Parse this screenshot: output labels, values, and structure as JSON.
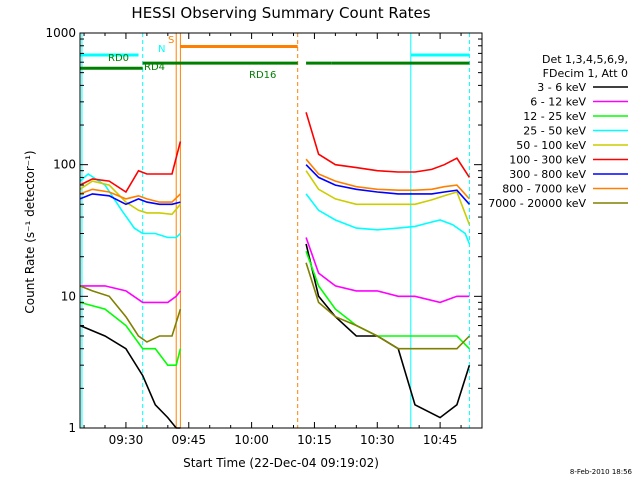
{
  "chart_data": {
    "type": "line",
    "title": "HESSI Observing Summary Count Rates",
    "xlabel": "Start Time (22-Dec-04 09:19:02)",
    "ylabel": "Count Rate (s⁻¹ detector⁻¹)",
    "y_scale": "log",
    "ylim": [
      1,
      1000
    ],
    "xlim": [
      "09:19:02",
      "10:55:00"
    ],
    "x_ticks": [
      "09:30",
      "09:45",
      "10:00",
      "10:15",
      "10:30",
      "10:45"
    ],
    "y_ticks": [
      "1",
      "10",
      "100",
      "1000"
    ],
    "footer": "8-Feb-2010 18:56",
    "legend": {
      "header": [
        "Det 1,3,4,5,6,9,",
        "FDecim 1, Att 0"
      ],
      "position": "right"
    },
    "series": [
      {
        "name": "3 - 6 keV",
        "color": "#000000",
        "x": [
          "09:19",
          "09:25",
          "09:30",
          "09:34",
          "09:37",
          "09:40",
          "09:42",
          "09:43",
          "10:11",
          "10:13",
          "10:16",
          "10:20",
          "10:25",
          "10:30",
          "10:35",
          "10:39",
          "10:45",
          "10:49",
          "10:52"
        ],
        "values": [
          6,
          5,
          4,
          2.5,
          1.5,
          1.2,
          1,
          1,
          null,
          25,
          10,
          7,
          5,
          5,
          4,
          1.5,
          1.2,
          1.5,
          3
        ]
      },
      {
        "name": "6 - 12 keV",
        "color": "#ff00ff",
        "x": [
          "09:19",
          "09:25",
          "09:30",
          "09:34",
          "09:37",
          "09:40",
          "09:42",
          "09:43",
          "10:11",
          "10:13",
          "10:16",
          "10:20",
          "10:25",
          "10:30",
          "10:35",
          "10:39",
          "10:45",
          "10:49",
          "10:52"
        ],
        "values": [
          12,
          12,
          11,
          9,
          9,
          9,
          10,
          11,
          null,
          28,
          15,
          12,
          11,
          11,
          10,
          10,
          9,
          10,
          10
        ]
      },
      {
        "name": "12 - 25 keV",
        "color": "#00ff00",
        "x": [
          "09:19",
          "09:25",
          "09:30",
          "09:34",
          "09:37",
          "09:40",
          "09:42",
          "09:43",
          "10:11",
          "10:13",
          "10:16",
          "10:20",
          "10:25",
          "10:30",
          "10:35",
          "10:39",
          "10:45",
          "10:49",
          "10:52"
        ],
        "values": [
          9,
          8,
          6,
          4,
          4,
          3,
          3,
          4,
          null,
          22,
          12,
          8,
          6,
          5,
          5,
          5,
          5,
          5,
          4
        ]
      },
      {
        "name": "25 - 50 keV",
        "color": "#00ffff",
        "x": [
          "09:19",
          "09:21",
          "09:25",
          "09:29",
          "09:32",
          "09:34",
          "09:37",
          "09:40",
          "09:42",
          "09:43",
          "10:11",
          "10:13",
          "10:16",
          "10:20",
          "10:25",
          "10:30",
          "10:35",
          "10:39",
          "10:42",
          "10:45",
          "10:48",
          "10:51",
          "10:52"
        ],
        "values": [
          75,
          85,
          70,
          45,
          33,
          30,
          30,
          28,
          28,
          30,
          null,
          60,
          45,
          38,
          33,
          32,
          33,
          34,
          36,
          38,
          35,
          30,
          25
        ]
      },
      {
        "name": "50 - 100 keV",
        "color": "#cccc00",
        "x": [
          "09:19",
          "09:22",
          "09:26",
          "09:30",
          "09:33",
          "09:35",
          "09:38",
          "09:41",
          "09:43",
          "10:11",
          "10:13",
          "10:16",
          "10:20",
          "10:25",
          "10:30",
          "10:35",
          "10:39",
          "10:43",
          "10:46",
          "10:49",
          "10:52"
        ],
        "values": [
          65,
          75,
          70,
          52,
          45,
          43,
          43,
          42,
          50,
          null,
          90,
          65,
          55,
          50,
          50,
          50,
          50,
          54,
          58,
          62,
          35
        ]
      },
      {
        "name": "100 - 300 keV",
        "color": "#ff0000",
        "x": [
          "09:19",
          "09:22",
          "09:26",
          "09:30",
          "09:33",
          "09:35",
          "09:38",
          "09:41",
          "09:43",
          "10:11",
          "10:13",
          "10:16",
          "10:20",
          "10:25",
          "10:30",
          "10:35",
          "10:39",
          "10:43",
          "10:46",
          "10:49",
          "10:52"
        ],
        "values": [
          70,
          78,
          75,
          62,
          90,
          85,
          85,
          85,
          150,
          null,
          250,
          120,
          100,
          95,
          90,
          88,
          88,
          92,
          100,
          112,
          80
        ]
      },
      {
        "name": "300 - 800 keV",
        "color": "#0000ff",
        "x": [
          "09:19",
          "09:22",
          "09:26",
          "09:30",
          "09:33",
          "09:35",
          "09:38",
          "09:41",
          "09:43",
          "10:11",
          "10:13",
          "10:16",
          "10:20",
          "10:25",
          "10:30",
          "10:35",
          "10:39",
          "10:43",
          "10:46",
          "10:49",
          "10:52"
        ],
        "values": [
          55,
          60,
          58,
          50,
          55,
          52,
          50,
          50,
          52,
          null,
          100,
          80,
          70,
          65,
          62,
          60,
          60,
          60,
          62,
          64,
          50
        ]
      },
      {
        "name": "800 - 7000 keV",
        "color": "#ff8000",
        "x": [
          "09:19",
          "09:22",
          "09:26",
          "09:30",
          "09:33",
          "09:35",
          "09:38",
          "09:41",
          "09:43",
          "10:11",
          "10:13",
          "10:16",
          "10:20",
          "10:25",
          "10:30",
          "10:35",
          "10:39",
          "10:43",
          "10:46",
          "10:49",
          "10:52"
        ],
        "values": [
          60,
          65,
          62,
          55,
          58,
          55,
          52,
          52,
          60,
          null,
          110,
          85,
          75,
          68,
          65,
          64,
          64,
          65,
          68,
          70,
          55
        ]
      },
      {
        "name": "7000 - 20000 keV",
        "color": "#808000",
        "x": [
          "09:19",
          "09:22",
          "09:26",
          "09:30",
          "09:33",
          "09:35",
          "09:38",
          "09:41",
          "09:43",
          "10:11",
          "10:13",
          "10:16",
          "10:20",
          "10:25",
          "10:30",
          "10:35",
          "10:39",
          "10:43",
          "10:46",
          "10:49",
          "10:52"
        ],
        "values": [
          12,
          11,
          10,
          7,
          5,
          4.5,
          5,
          5,
          8,
          null,
          18,
          9,
          7,
          6,
          5,
          4,
          4,
          4,
          4,
          4,
          5
        ]
      }
    ],
    "annotations": [
      {
        "text": "RD0",
        "color": "#008000"
      },
      {
        "text": "N",
        "color": "#00ffff"
      },
      {
        "text": "S",
        "color": "#ff8000"
      },
      {
        "text": "RD4",
        "color": "#008000"
      },
      {
        "text": "RD16",
        "color": "#008000"
      }
    ],
    "flag_bars": [
      {
        "name": "N",
        "color": "#00ffff",
        "y": 680,
        "segments": [
          [
            "09:19",
            "09:33"
          ],
          [
            "10:38",
            "10:52"
          ]
        ]
      },
      {
        "name": "S",
        "color": "#ff8000",
        "y": 790,
        "segments": [
          [
            "09:43",
            "10:11"
          ]
        ]
      },
      {
        "name": "RD0",
        "color": "#008000",
        "y": 540,
        "segments": [
          [
            "09:19",
            "09:34"
          ]
        ]
      },
      {
        "name": "RD4",
        "color": "#008000",
        "y": 590,
        "segments": [
          [
            "09:34",
            "10:11"
          ],
          [
            "10:13",
            "10:19"
          ],
          [
            "10:19",
            "10:52"
          ]
        ]
      }
    ],
    "vertical_markers": [
      {
        "x": "09:19:30",
        "color": "#00ffff",
        "style": "solid"
      },
      {
        "x": "09:34",
        "color": "#00ffff",
        "style": "dashed"
      },
      {
        "x": "09:42",
        "color": "#ff8000",
        "style": "solid"
      },
      {
        "x": "09:43",
        "color": "#ff8000",
        "style": "solid"
      },
      {
        "x": "10:11",
        "color": "#ff8000",
        "style": "dashed"
      },
      {
        "x": "10:38",
        "color": "#00ffff",
        "style": "solid"
      },
      {
        "x": "10:52",
        "color": "#00ffff",
        "style": "dashed"
      }
    ]
  }
}
